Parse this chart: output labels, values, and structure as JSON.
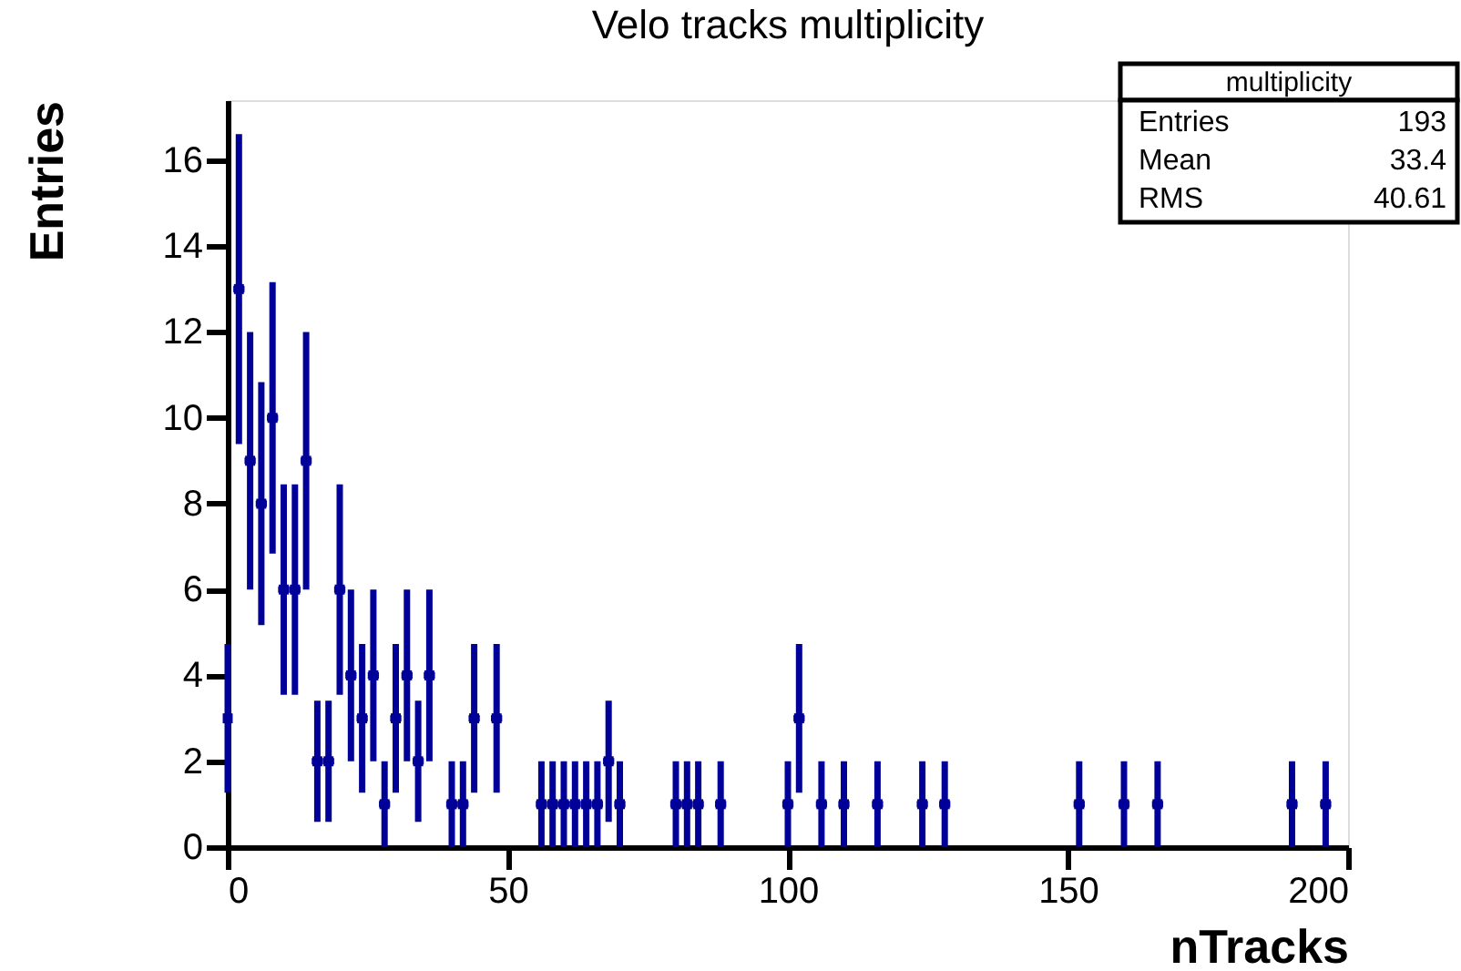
{
  "chart_data": {
    "type": "scatter",
    "title": "Velo tracks multiplicity",
    "xlabel": "nTracks",
    "ylabel": "Entries",
    "x": [
      0,
      2,
      4,
      6,
      8,
      10,
      12,
      14,
      16,
      18,
      20,
      22,
      24,
      26,
      28,
      30,
      32,
      34,
      36,
      40,
      42,
      44,
      48,
      56,
      58,
      60,
      62,
      64,
      66,
      68,
      70,
      80,
      82,
      84,
      88,
      100,
      102,
      106,
      110,
      116,
      124,
      128,
      152,
      160,
      166,
      190,
      196
    ],
    "series": [
      {
        "color": "#000099",
        "values": [
          3,
          13,
          9,
          8,
          10,
          6,
          6,
          9,
          2,
          2,
          6,
          4,
          3,
          4,
          1,
          3,
          4,
          2,
          4,
          1,
          1,
          3,
          3,
          1,
          1,
          1,
          1,
          1,
          1,
          2,
          1,
          1,
          1,
          1,
          1,
          1,
          3,
          1,
          1,
          1,
          1,
          1,
          1,
          1,
          1,
          1,
          1
        ],
        "errors": [
          1.73,
          3.61,
          3,
          2.83,
          3.16,
          2.45,
          2.45,
          3,
          1.41,
          1.41,
          2.45,
          2,
          1.73,
          2,
          1,
          1.73,
          2,
          1.41,
          2,
          1,
          1,
          1.73,
          1.73,
          1,
          1,
          1,
          1,
          1,
          1,
          1.41,
          1,
          1,
          1,
          1,
          1,
          1,
          1.73,
          1,
          1,
          1,
          1,
          1,
          1,
          1,
          1,
          1,
          1
        ],
        "xerrors": [
          null,
          1,
          1,
          1,
          1,
          1,
          1,
          1,
          1,
          1,
          1,
          1,
          1,
          1,
          1,
          1,
          1,
          1,
          1,
          1,
          1,
          1,
          1,
          1,
          1,
          1,
          1,
          1,
          1,
          1,
          1,
          1,
          1,
          1,
          1,
          1,
          1,
          1,
          1,
          1,
          1,
          1,
          1,
          1,
          1,
          1,
          1
        ]
      }
    ],
    "xlim": [
      0,
      200
    ],
    "xticks": [
      0,
      50,
      100,
      150,
      200
    ],
    "ylim": [
      0,
      17.4
    ],
    "yticks": [
      0,
      2,
      4,
      6,
      8,
      10,
      12,
      14,
      16
    ],
    "grid": false,
    "marker": "square",
    "annotations": [
      "multiplicity",
      "Entries",
      "193",
      "Mean",
      "33.4",
      "RMS",
      "40.61"
    ]
  }
}
